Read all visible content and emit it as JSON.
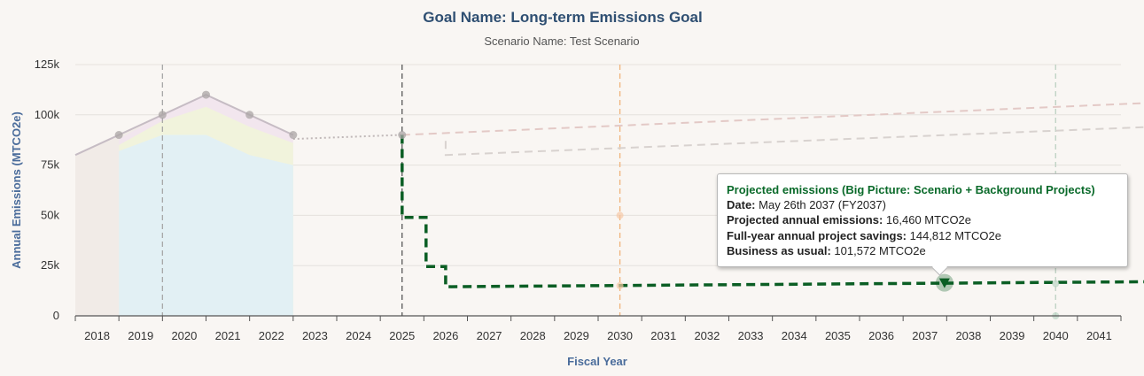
{
  "chart_data": {
    "type": "line",
    "title": "Goal Name: Long-term Emissions Goal",
    "subtitle": "Scenario Name: Test Scenario",
    "xlabel": "Fiscal Year",
    "ylabel": "Annual Emissions (MTCO2e)",
    "ylim": [
      0,
      125000
    ],
    "x_categories": [
      "2018",
      "2019",
      "2020",
      "2021",
      "2022",
      "2023",
      "2024",
      "2025",
      "2026",
      "2027",
      "2028",
      "2029",
      "2030",
      "2031",
      "2032",
      "2033",
      "2034",
      "2035",
      "2036",
      "2037",
      "2038",
      "2039",
      "2040",
      "2041"
    ],
    "y_ticks": [
      {
        "value": 0,
        "label": "0"
      },
      {
        "value": 25000,
        "label": "25k"
      },
      {
        "value": 50000,
        "label": "50k"
      },
      {
        "value": 75000,
        "label": "75k"
      },
      {
        "value": 100000,
        "label": "100k"
      },
      {
        "value": 125000,
        "label": "125k"
      }
    ],
    "grid": true,
    "historical": {
      "x": [
        2017.5,
        2018.5,
        2019.5,
        2020.5,
        2021.5,
        2022.5
      ],
      "y": [
        80000,
        90000,
        100000,
        110000,
        100000,
        90000
      ],
      "color": "#c6bcc4"
    },
    "history_markers": {
      "x": [
        2018.5,
        2019.5,
        2020.5,
        2021.5,
        2022.5,
        2025.0
      ],
      "y": [
        90000,
        100000,
        110000,
        100000,
        90000,
        90000
      ]
    },
    "bau_dotted": {
      "x": [
        2022.5,
        2025.0
      ],
      "y": [
        88000,
        90000
      ],
      "color": "#c0b8b8"
    },
    "stacked_areas": [
      {
        "x": [
          2018.5,
          2019.5,
          2020.5,
          2021.5,
          2022.5
        ],
        "y": [
          82000,
          90000,
          90000,
          80000,
          75000
        ],
        "color": "#e2f0f4"
      },
      {
        "x": [
          2018.5,
          2019.5,
          2020.5,
          2021.5,
          2022.5
        ],
        "y": [
          85000,
          97000,
          104000,
          94000,
          86000
        ],
        "color": "#f1f3dc"
      },
      {
        "x": [
          2018.5,
          2019.5,
          2020.5,
          2021.5,
          2022.5
        ],
        "y": [
          88000,
          100000,
          110000,
          100000,
          90000
        ],
        "color": "#f2e6ee"
      }
    ],
    "base_area": {
      "x": [
        2017.5,
        2018.5,
        2019.5
      ],
      "y": [
        80000,
        90000,
        100000
      ],
      "color": "#f1ebe7"
    },
    "projected": {
      "name": "Projected emissions (Big Picture: Scenario + Background Projects)",
      "x": [
        2025.0,
        2025.0,
        2025.55,
        2025.55,
        2026.0,
        2026.0,
        2042.2
      ],
      "y": [
        90000,
        49000,
        49000,
        24500,
        24500,
        14500,
        17000
      ],
      "color": "#0b5e24"
    },
    "bau_upper": {
      "x": [
        2025.0,
        2042.2
      ],
      "y": [
        90000,
        106000
      ],
      "color": "#e3c9c6"
    },
    "bau_lower": {
      "x": [
        2026.0,
        2026.0,
        2042.2
      ],
      "y": [
        87000,
        80000,
        94000
      ],
      "color": "#d8d2cf"
    },
    "vlines": [
      {
        "x": 2019.5,
        "color": "#a8a8a8"
      },
      {
        "x": 2025.0,
        "color": "#555555"
      },
      {
        "x": 2030.0,
        "color": "#f0b27a"
      },
      {
        "x": 2040.0,
        "color": "#bcd0c1"
      }
    ],
    "faint_markers": [
      {
        "x": 2030.0,
        "y": 50000,
        "color": "#f6c9a6"
      },
      {
        "x": 2030.0,
        "y": 15000,
        "color": "#f6c9a6"
      },
      {
        "x": 2040.0,
        "y": 16000,
        "color": "#bcd6c4"
      },
      {
        "x": 2040.0,
        "y": 0,
        "color": "#bcd6c4"
      }
    ],
    "highlight": {
      "x": 2037.45,
      "y": 16460,
      "color": "#0b5e24"
    }
  },
  "tooltip": {
    "title": "Projected emissions (Big Picture: Scenario + Background Projects)",
    "date_label": "Date:",
    "date_value": "May 26th 2037 (FY2037)",
    "emissions_label": "Projected annual emissions:",
    "emissions_value": "16,460 MTCO2e",
    "savings_label": "Full-year annual project savings:",
    "savings_value": "144,812 MTCO2e",
    "bau_label": "Business as usual:",
    "bau_value": "101,572 MTCO2e"
  }
}
